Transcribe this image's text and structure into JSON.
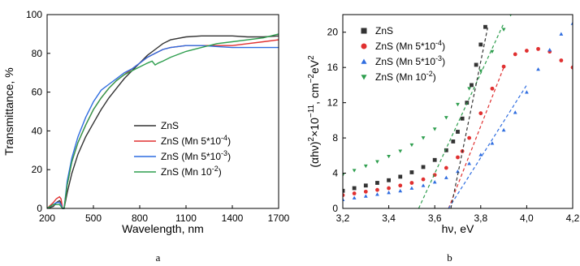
{
  "chart_data": [
    {
      "type": "line",
      "panel_label": "a",
      "xlabel": "Wavelength, nm",
      "ylabel": "Transmittance, %",
      "xlim": [
        200,
        1700
      ],
      "ylim": [
        0,
        100
      ],
      "xticks": [
        200,
        500,
        800,
        1100,
        1400,
        1700
      ],
      "yticks": [
        0,
        20,
        40,
        60,
        80,
        100
      ],
      "grid": false,
      "legend_position": "center-right",
      "series": [
        {
          "name": "ZnS",
          "color": "#333333",
          "x": [
            200,
            240,
            260,
            280,
            290,
            300,
            310,
            330,
            360,
            400,
            450,
            500,
            550,
            600,
            650,
            700,
            750,
            800,
            850,
            900,
            950,
            1000,
            1100,
            1200,
            1300,
            1400,
            1500,
            1600,
            1700
          ],
          "y": [
            0,
            1,
            3,
            4,
            3,
            0,
            0,
            8,
            18,
            28,
            37,
            44,
            51,
            57,
            62,
            67,
            71,
            75,
            79,
            82,
            85,
            87,
            88.5,
            89,
            89,
            89,
            88.5,
            88.5,
            89
          ]
        },
        {
          "name": "ZnS (Mn 5*10",
          "sup": "-4",
          "suffix": ")",
          "color": "#e03030",
          "x": [
            200,
            240,
            260,
            280,
            290,
            300,
            310,
            330,
            360,
            400,
            450,
            500,
            550,
            600,
            650,
            700,
            750,
            800,
            850,
            900,
            950,
            1000,
            1100,
            1200,
            1300,
            1400,
            1500,
            1600,
            1700
          ],
          "y": [
            0,
            3,
            5,
            6,
            5,
            0,
            0,
            12,
            24,
            34,
            43,
            51,
            57,
            62,
            66,
            69,
            72,
            75,
            78,
            80,
            82,
            83,
            84,
            84,
            84,
            84,
            85,
            86,
            87
          ]
        },
        {
          "name": "ZnS (Mn 5*10",
          "sup": "-3",
          "suffix": ")",
          "color": "#2f6de0",
          "x": [
            200,
            240,
            260,
            280,
            290,
            300,
            310,
            330,
            360,
            400,
            450,
            500,
            550,
            600,
            650,
            700,
            750,
            800,
            850,
            900,
            950,
            1000,
            1100,
            1200,
            1300,
            1400,
            1500,
            1600,
            1700
          ],
          "y": [
            0,
            2,
            3,
            3,
            2,
            0,
            0,
            14,
            26,
            37,
            47,
            55,
            61,
            64,
            67,
            70,
            72,
            75,
            78,
            80,
            82,
            83,
            84,
            84,
            83.5,
            83,
            83,
            83,
            83
          ]
        },
        {
          "name": "ZnS (Mn 10",
          "sup": "-2",
          "suffix": ")",
          "color": "#2e9e4e",
          "x": [
            200,
            240,
            260,
            280,
            290,
            300,
            310,
            330,
            360,
            400,
            450,
            500,
            550,
            600,
            650,
            700,
            750,
            800,
            850,
            880,
            900,
            920,
            950,
            1000,
            1100,
            1200,
            1300,
            1400,
            1500,
            1600,
            1700
          ],
          "y": [
            0,
            2,
            2,
            2,
            1,
            0,
            0,
            12,
            24,
            34,
            43,
            51,
            57,
            62,
            66,
            69,
            71,
            73,
            75,
            76,
            74,
            75,
            76,
            78,
            81,
            83,
            85,
            86,
            87,
            88,
            90
          ]
        }
      ]
    },
    {
      "type": "scatter",
      "panel_label": "b",
      "xlabel": "hν, eV",
      "ylabel_parts": [
        "(αhν)",
        "2",
        "×10",
        "−11",
        ", cm",
        "−2",
        "eV",
        "2"
      ],
      "xlim": [
        3.2,
        4.2
      ],
      "ylim": [
        0,
        22
      ],
      "xticks": [
        "3,2",
        "3,4",
        "3,6",
        "3,8",
        "4,0",
        "4,2"
      ],
      "xtick_values": [
        3.2,
        3.4,
        3.6,
        3.8,
        4.0,
        4.2
      ],
      "yticks": [
        0,
        4,
        8,
        12,
        16,
        20
      ],
      "grid": false,
      "legend_position": "top-left",
      "series": [
        {
          "name": "ZnS",
          "marker": "square",
          "color": "#333333",
          "x": [
            3.2,
            3.25,
            3.3,
            3.35,
            3.4,
            3.45,
            3.5,
            3.55,
            3.6,
            3.65,
            3.68,
            3.7,
            3.72,
            3.74,
            3.76,
            3.78,
            3.8,
            3.82
          ],
          "y": [
            2.0,
            2.3,
            2.6,
            2.9,
            3.2,
            3.6,
            4.1,
            4.7,
            5.5,
            6.6,
            7.6,
            8.7,
            10.2,
            12.0,
            14.0,
            16.3,
            18.6,
            20.6
          ]
        },
        {
          "name": "ZnS (Mn 5*10",
          "sup": "-4",
          "suffix": ")",
          "marker": "circle",
          "color": "#e03030",
          "x": [
            3.2,
            3.25,
            3.3,
            3.35,
            3.4,
            3.45,
            3.5,
            3.55,
            3.6,
            3.65,
            3.7,
            3.72,
            3.75,
            3.8,
            3.85,
            3.9,
            3.95,
            4.0,
            4.05,
            4.1,
            4.15,
            4.2
          ],
          "y": [
            1.5,
            1.7,
            1.9,
            2.1,
            2.3,
            2.6,
            2.9,
            3.3,
            3.8,
            4.6,
            5.8,
            6.5,
            8.0,
            10.8,
            13.6,
            16.1,
            17.5,
            17.9,
            18.1,
            17.8,
            16.8,
            16.0
          ]
        },
        {
          "name": "ZnS (Mn 5*10",
          "sup": "-3",
          "suffix": ")",
          "marker": "triangle-up",
          "color": "#2f6de0",
          "x": [
            3.2,
            3.25,
            3.3,
            3.35,
            3.4,
            3.45,
            3.5,
            3.55,
            3.6,
            3.65,
            3.7,
            3.75,
            3.8,
            3.85,
            3.9,
            3.95,
            4.0,
            4.05,
            4.1,
            4.15,
            4.2
          ],
          "y": [
            1.0,
            1.2,
            1.4,
            1.6,
            1.8,
            2.0,
            2.3,
            2.6,
            3.0,
            3.5,
            4.2,
            5.1,
            6.1,
            7.4,
            8.9,
            10.9,
            13.2,
            15.8,
            18.0,
            19.8,
            21.0
          ]
        },
        {
          "name": "ZnS (Mn 10",
          "sup": "-2",
          "suffix": ")",
          "marker": "triangle-down",
          "color": "#2e9e4e",
          "x": [
            3.2,
            3.25,
            3.3,
            3.35,
            3.4,
            3.45,
            3.5,
            3.55,
            3.6,
            3.65,
            3.7,
            3.75,
            3.8,
            3.85,
            3.9,
            3.93
          ],
          "y": [
            3.8,
            4.3,
            4.8,
            5.3,
            5.9,
            6.5,
            7.2,
            8.0,
            9.0,
            10.3,
            11.8,
            13.6,
            15.6,
            17.8,
            20.3,
            22.0
          ]
        }
      ],
      "fit_lines": [
        {
          "color": "#2e9e4e",
          "x": [
            3.53,
            3.9
          ],
          "y": [
            0,
            21
          ]
        },
        {
          "color": "#e03030",
          "x": [
            3.66,
            3.9
          ],
          "y": [
            0,
            16
          ]
        },
        {
          "color": "#2f6de0",
          "x": [
            3.66,
            4.0
          ],
          "y": [
            0,
            14
          ]
        },
        {
          "color": "#333333",
          "x": [
            3.67,
            3.83
          ],
          "y": [
            0,
            20.5
          ]
        }
      ]
    }
  ]
}
